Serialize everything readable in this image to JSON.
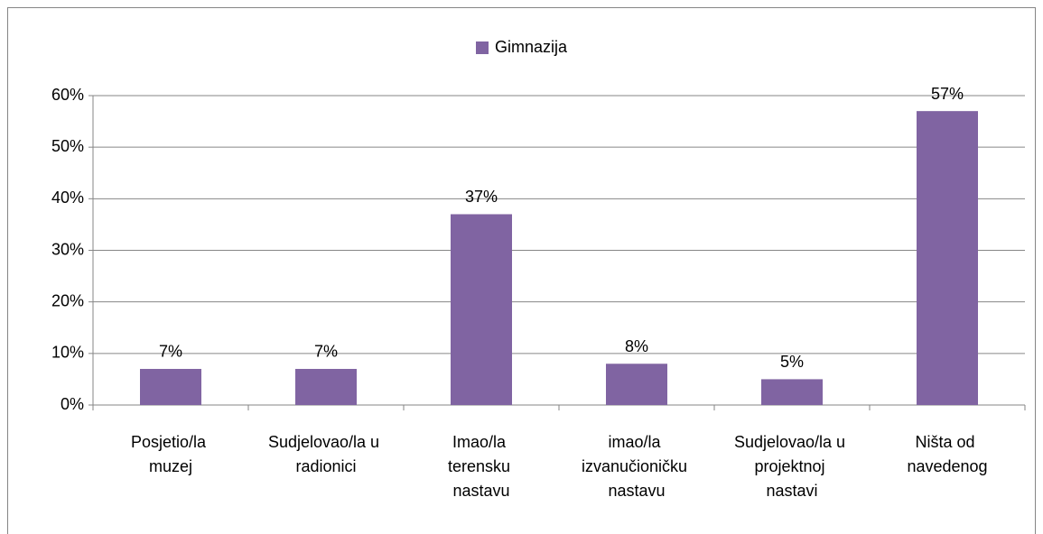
{
  "chart_data": {
    "type": "bar",
    "categories": [
      "Posjetio/la muzej",
      "Sudjelovao/la u radionici",
      "Imao/la terensku nastavu",
      "imao/la izvanučioničku nastavu",
      "Sudjelovao/la u projektnoj nastavi",
      "Ništa od navedenog"
    ],
    "series": [
      {
        "name": "Gimnazija",
        "color": "#8064a2",
        "values": [
          7,
          7,
          37,
          8,
          5,
          57
        ],
        "value_labels": [
          "7%",
          "7%",
          "37%",
          "8%",
          "5%",
          "57%"
        ]
      }
    ],
    "ylim": [
      0,
      60
    ],
    "yticks": [
      {
        "value": 0,
        "label": "0%"
      },
      {
        "value": 10,
        "label": "10%"
      },
      {
        "value": 20,
        "label": "20%"
      },
      {
        "value": 30,
        "label": "30%"
      },
      {
        "value": 40,
        "label": "40%"
      },
      {
        "value": 50,
        "label": "50%"
      },
      {
        "value": 60,
        "label": "60%"
      }
    ],
    "grid": true,
    "legend": "top"
  }
}
